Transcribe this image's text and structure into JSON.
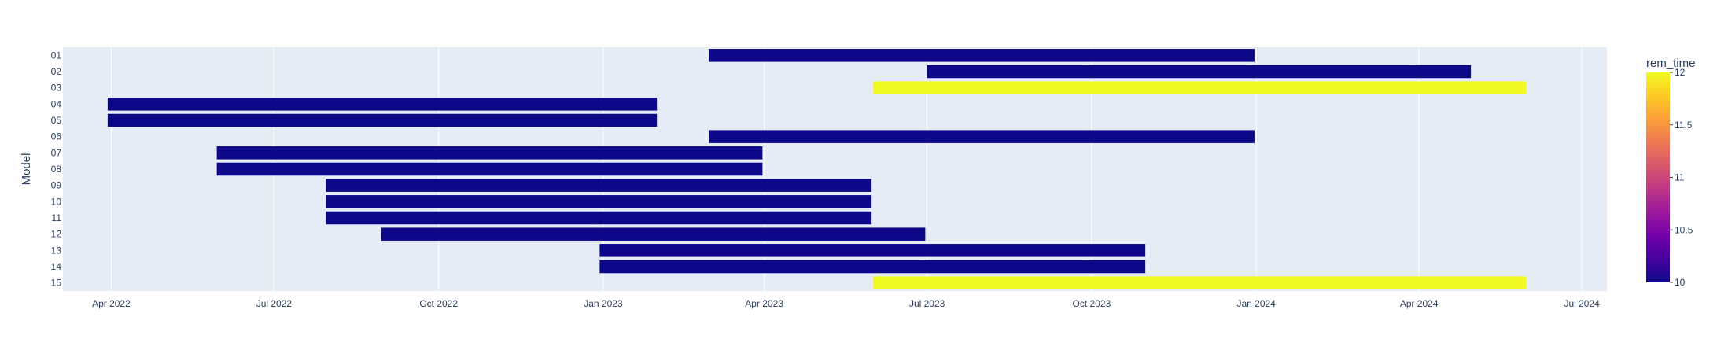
{
  "chart_data": {
    "type": "gantt",
    "ylabel": "Model",
    "xlabel": "",
    "title": "",
    "x_range": [
      "2022-03-05",
      "2024-07-15"
    ],
    "x_ticks": [
      {
        "date": "2022-04-01",
        "label": "Apr 2022"
      },
      {
        "date": "2022-07-01",
        "label": "Jul 2022"
      },
      {
        "date": "2022-10-01",
        "label": "Oct 2022"
      },
      {
        "date": "2023-01-01",
        "label": "Jan 2023"
      },
      {
        "date": "2023-04-01",
        "label": "Apr 2023"
      },
      {
        "date": "2023-07-01",
        "label": "Jul 2023"
      },
      {
        "date": "2023-10-01",
        "label": "Oct 2023"
      },
      {
        "date": "2024-01-01",
        "label": "Jan 2024"
      },
      {
        "date": "2024-04-01",
        "label": "Apr 2024"
      },
      {
        "date": "2024-07-01",
        "label": "Jul 2024"
      }
    ],
    "tasks": [
      {
        "model": "01",
        "start": "2023-03-01",
        "end": "2023-12-31",
        "rem_time": 10
      },
      {
        "model": "02",
        "start": "2023-07-01",
        "end": "2024-04-30",
        "rem_time": 10
      },
      {
        "model": "03",
        "start": "2023-06-01",
        "end": "2024-05-31",
        "rem_time": 12
      },
      {
        "model": "04",
        "start": "2022-03-30",
        "end": "2023-01-31",
        "rem_time": 10
      },
      {
        "model": "05",
        "start": "2022-03-30",
        "end": "2023-01-31",
        "rem_time": 10
      },
      {
        "model": "06",
        "start": "2023-03-01",
        "end": "2023-12-31",
        "rem_time": 10
      },
      {
        "model": "07",
        "start": "2022-05-30",
        "end": "2023-03-31",
        "rem_time": 10
      },
      {
        "model": "08",
        "start": "2022-05-30",
        "end": "2023-03-31",
        "rem_time": 10
      },
      {
        "model": "09",
        "start": "2022-07-30",
        "end": "2023-05-31",
        "rem_time": 10
      },
      {
        "model": "10",
        "start": "2022-07-30",
        "end": "2023-05-31",
        "rem_time": 10
      },
      {
        "model": "11",
        "start": "2022-07-30",
        "end": "2023-05-31",
        "rem_time": 10
      },
      {
        "model": "12",
        "start": "2022-08-30",
        "end": "2023-06-30",
        "rem_time": 10
      },
      {
        "model": "13",
        "start": "2022-12-30",
        "end": "2023-10-31",
        "rem_time": 10
      },
      {
        "model": "14",
        "start": "2022-12-30",
        "end": "2023-10-31",
        "rem_time": 10
      },
      {
        "model": "15",
        "start": "2023-06-01",
        "end": "2024-05-31",
        "rem_time": 12
      }
    ],
    "colorbar": {
      "title": "rem_time",
      "range": [
        10,
        12
      ],
      "ticks": [
        "10",
        "10.5",
        "11",
        "11.5",
        "12"
      ],
      "colorscale": [
        "#0d0887",
        "#46039f",
        "#7201a8",
        "#9c179e",
        "#bd3786",
        "#d8576b",
        "#ed7953",
        "#fb9f3a",
        "#fdca26",
        "#f0f921"
      ]
    },
    "grid": true,
    "legend": "none"
  }
}
